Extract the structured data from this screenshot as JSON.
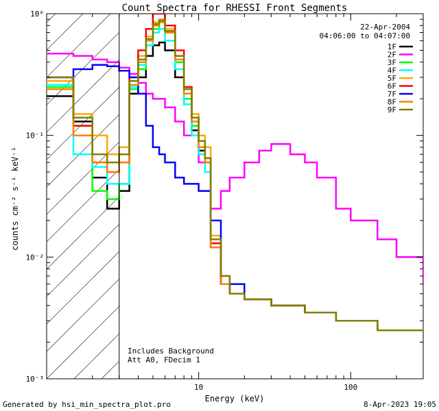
{
  "chart_data": {
    "type": "line",
    "title": "Count Spectra for RHESSI Front Segments",
    "xlabel": "Energy (keV)",
    "ylabel": "counts cm⁻² s⁻¹ keV⁻¹",
    "xscale": "log",
    "yscale": "log",
    "xlim": [
      1.0,
      300
    ],
    "ylim": [
      0.001,
      1.0
    ],
    "x_ticks": [
      {
        "value": 10,
        "label": "10"
      },
      {
        "value": 100,
        "label": "100"
      }
    ],
    "y_ticks": [
      {
        "value": 1.0,
        "label": "10⁰"
      },
      {
        "value": 0.1,
        "label": "10⁻¹"
      },
      {
        "value": 0.01,
        "label": "10⁻²"
      },
      {
        "value": 0.001,
        "label": "10⁻³"
      }
    ],
    "shaded_region": {
      "from": 1.0,
      "to": 3.0,
      "style": "hatched"
    },
    "date": "22-Apr-2004",
    "time_range": "04:06:00 to 04:07:00",
    "annotations": [
      "Includes Background",
      "Att A0, FDecim 1"
    ],
    "series": [
      {
        "name": "1F",
        "color": "#000000",
        "x": [
          1.0,
          1.5,
          2.0,
          2.5,
          3.0,
          3.5,
          4.0,
          4.5,
          5.0,
          5.5,
          6.0,
          7.0,
          8.0,
          9.0,
          10.0,
          11.0,
          12.0,
          14.0,
          16.0,
          20.0,
          30.0,
          50.0,
          80.0,
          150.0,
          300.0
        ],
        "values": [
          0.21,
          0.13,
          0.045,
          0.025,
          0.035,
          0.22,
          0.3,
          0.45,
          0.55,
          0.58,
          0.5,
          0.3,
          0.18,
          0.11,
          0.075,
          0.06,
          0.012,
          0.006,
          0.005,
          0.0045,
          0.004,
          0.0035,
          0.003,
          0.0025,
          0.0025
        ]
      },
      {
        "name": "2F",
        "color": "#ff00ff",
        "x": [
          1.0,
          1.5,
          2.0,
          2.5,
          3.0,
          3.5,
          4.0,
          4.5,
          5.0,
          6.0,
          7.0,
          8.0,
          10.0,
          12.0,
          14.0,
          16.0,
          20.0,
          25.0,
          30.0,
          40.0,
          50.0,
          60.0,
          80.0,
          100.0,
          150.0,
          200.0,
          300.0
        ],
        "values": [
          0.47,
          0.45,
          0.42,
          0.4,
          0.36,
          0.32,
          0.27,
          0.22,
          0.2,
          0.17,
          0.13,
          0.1,
          0.06,
          0.025,
          0.035,
          0.045,
          0.06,
          0.075,
          0.085,
          0.07,
          0.06,
          0.045,
          0.025,
          0.02,
          0.014,
          0.01,
          0.006
        ]
      },
      {
        "name": "3F",
        "color": "#00ff00",
        "x": [
          1.0,
          1.5,
          2.0,
          2.5,
          3.0,
          3.5,
          4.0,
          4.5,
          5.0,
          5.5,
          6.0,
          7.0,
          8.0,
          9.0,
          10.0,
          11.0,
          12.0,
          14.0,
          16.0,
          20.0,
          30.0,
          50.0,
          80.0,
          150.0,
          300.0
        ],
        "values": [
          0.25,
          0.12,
          0.035,
          0.03,
          0.04,
          0.24,
          0.35,
          0.55,
          0.75,
          0.85,
          0.7,
          0.4,
          0.2,
          0.12,
          0.08,
          0.06,
          0.012,
          0.006,
          0.005,
          0.0045,
          0.004,
          0.0035,
          0.003,
          0.0025,
          0.0025
        ]
      },
      {
        "name": "4F",
        "color": "#00ffff",
        "x": [
          1.0,
          1.5,
          2.0,
          2.5,
          3.0,
          3.5,
          4.0,
          4.5,
          5.0,
          5.5,
          6.0,
          7.0,
          8.0,
          9.0,
          10.0,
          11.0,
          12.0,
          14.0,
          16.0,
          20.0,
          30.0,
          50.0,
          80.0,
          150.0,
          300.0
        ],
        "values": [
          0.26,
          0.07,
          0.055,
          0.04,
          0.04,
          0.25,
          0.38,
          0.55,
          0.7,
          0.75,
          0.6,
          0.35,
          0.18,
          0.1,
          0.07,
          0.05,
          0.012,
          0.006,
          0.005,
          0.0045,
          0.004,
          0.0035,
          0.003,
          0.0025,
          0.0025
        ]
      },
      {
        "name": "5F",
        "color": "#ffaa00",
        "x": [
          1.0,
          1.5,
          2.0,
          2.5,
          3.0,
          3.5,
          4.0,
          4.5,
          5.0,
          5.5,
          6.0,
          7.0,
          8.0,
          9.0,
          10.0,
          11.0,
          12.0,
          14.0,
          16.0,
          20.0,
          30.0,
          50.0,
          80.0,
          150.0,
          300.0
        ],
        "values": [
          0.28,
          0.15,
          0.1,
          0.07,
          0.08,
          0.3,
          0.45,
          0.65,
          0.85,
          0.9,
          0.75,
          0.45,
          0.25,
          0.15,
          0.1,
          0.08,
          0.015,
          0.007,
          0.005,
          0.0045,
          0.004,
          0.0035,
          0.003,
          0.0025,
          0.0025
        ]
      },
      {
        "name": "6F",
        "color": "#ff0000",
        "x": [
          1.0,
          1.5,
          2.0,
          2.5,
          3.0,
          3.5,
          4.0,
          4.5,
          5.0,
          5.5,
          6.0,
          7.0,
          8.0,
          9.0,
          10.0,
          11.0,
          12.0,
          14.0,
          16.0,
          20.0,
          30.0,
          50.0,
          80.0,
          150.0,
          300.0
        ],
        "values": [
          0.3,
          0.12,
          0.06,
          0.05,
          0.06,
          0.3,
          0.5,
          0.75,
          1.0,
          1.0,
          0.8,
          0.5,
          0.25,
          0.14,
          0.09,
          0.065,
          0.013,
          0.006,
          0.005,
          0.0045,
          0.004,
          0.0035,
          0.003,
          0.0025,
          0.0025
        ]
      },
      {
        "name": "7F",
        "color": "#0000ff",
        "x": [
          1.0,
          1.5,
          2.0,
          2.5,
          3.0,
          3.5,
          4.0,
          4.5,
          5.0,
          5.5,
          6.0,
          7.0,
          8.0,
          10.0,
          12.0,
          14.0,
          20.0,
          30.0,
          50.0,
          80.0,
          150.0,
          300.0
        ],
        "values": [
          0.3,
          0.35,
          0.38,
          0.37,
          0.34,
          0.3,
          0.22,
          0.12,
          0.08,
          0.07,
          0.06,
          0.045,
          0.04,
          0.035,
          0.02,
          0.006,
          0.0045,
          0.004,
          0.0035,
          0.003,
          0.0025,
          0.0025
        ]
      },
      {
        "name": "8F",
        "color": "#ff7f00",
        "x": [
          1.0,
          1.5,
          2.0,
          2.5,
          3.0,
          3.5,
          4.0,
          4.5,
          5.0,
          5.5,
          6.0,
          7.0,
          8.0,
          9.0,
          10.0,
          11.0,
          12.0,
          14.0,
          16.0,
          20.0,
          30.0,
          50.0,
          80.0,
          150.0,
          300.0
        ],
        "values": [
          0.24,
          0.1,
          0.06,
          0.05,
          0.06,
          0.26,
          0.4,
          0.6,
          0.8,
          0.85,
          0.7,
          0.42,
          0.22,
          0.13,
          0.08,
          0.06,
          0.012,
          0.006,
          0.005,
          0.0045,
          0.004,
          0.0035,
          0.003,
          0.0025,
          0.0025
        ]
      },
      {
        "name": "9F",
        "color": "#808000",
        "x": [
          1.0,
          1.5,
          2.0,
          2.5,
          3.0,
          3.5,
          4.0,
          4.5,
          5.0,
          5.5,
          6.0,
          7.0,
          8.0,
          9.0,
          10.0,
          11.0,
          12.0,
          14.0,
          16.0,
          20.0,
          30.0,
          50.0,
          80.0,
          150.0,
          300.0
        ],
        "values": [
          0.3,
          0.14,
          0.07,
          0.06,
          0.07,
          0.28,
          0.42,
          0.62,
          0.82,
          0.88,
          0.72,
          0.45,
          0.24,
          0.14,
          0.09,
          0.065,
          0.014,
          0.007,
          0.005,
          0.0045,
          0.004,
          0.0035,
          0.003,
          0.0025,
          0.0025
        ]
      }
    ]
  },
  "footer": {
    "left": "Generated by hsi_min_spectra_plot.pro",
    "right": "8-Apr-2023 19:05"
  }
}
